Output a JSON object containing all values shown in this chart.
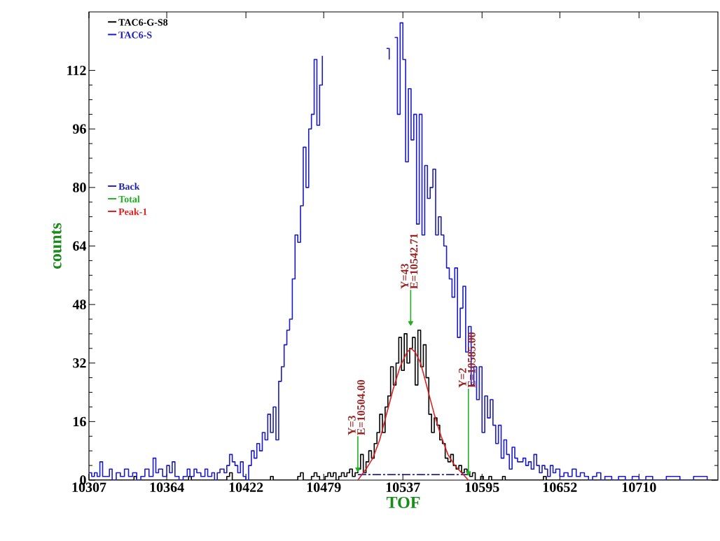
{
  "chart_data": {
    "type": "step",
    "xlabel": "TOF",
    "ylabel": "counts",
    "xlim": [
      10307,
      10767.8
    ],
    "ylim": [
      0,
      128
    ],
    "xticks": [
      10307,
      10364,
      10422,
      10479,
      10537,
      10595,
      10652,
      10710
    ],
    "yticks": [
      0,
      16,
      32,
      48,
      64,
      80,
      96,
      112
    ],
    "legend": "top left",
    "marker": "none",
    "series": [
      {
        "name": "TAC6-G-S8",
        "color": "#000000",
        "x": [
          10307,
          10340,
          10342,
          10380,
          10382,
          10408,
          10410,
          10412,
          10440,
          10442,
          10460,
          10462,
          10464,
          10470,
          10472,
          10474,
          10476,
          10480,
          10482,
          10484,
          10486,
          10488,
          10490,
          10492,
          10494,
          10496,
          10498,
          10500,
          10502,
          10504,
          10506,
          10508,
          10510,
          10512,
          10514,
          10516,
          10518,
          10520,
          10522,
          10524,
          10526,
          10528,
          10530,
          10532,
          10534,
          10536,
          10538,
          10540,
          10542,
          10544,
          10546,
          10548,
          10550,
          10552,
          10554,
          10556,
          10558,
          10560,
          10562,
          10564,
          10566,
          10568,
          10570,
          10572,
          10574,
          10576,
          10578,
          10580,
          10582,
          10584,
          10586,
          10588,
          10590,
          10594,
          10596,
          10600,
          10602,
          10610,
          10612,
          10640,
          10642,
          10767
        ],
        "values": [
          0,
          1,
          0,
          1,
          0,
          1,
          2,
          0,
          1,
          0,
          1,
          2,
          0,
          1,
          2,
          1,
          0,
          1,
          2,
          1,
          2,
          0,
          1,
          2,
          1,
          2,
          3,
          1,
          2,
          3,
          7,
          2,
          5,
          8,
          6,
          10,
          13,
          18,
          13,
          20,
          23,
          31,
          26,
          32,
          39,
          30,
          40,
          32,
          36,
          39,
          26,
          41,
          31,
          37,
          28,
          18,
          13,
          17,
          15,
          11,
          10,
          6,
          5,
          7,
          4,
          3,
          4,
          2,
          3,
          2,
          1,
          2,
          0,
          1,
          0,
          1,
          0,
          1,
          0,
          1,
          0,
          0
        ]
      },
      {
        "name": "TAC6-S",
        "color": "#1a1ac8",
        "x": [
          10307,
          10309,
          10311,
          10313,
          10315,
          10317,
          10320,
          10322,
          10324,
          10327,
          10330,
          10333,
          10336,
          10339,
          10342,
          10345,
          10348,
          10351,
          10354,
          10356,
          10358,
          10361,
          10364,
          10366,
          10368,
          10370,
          10373,
          10376,
          10379,
          10381,
          10384,
          10386,
          10389,
          10392,
          10394,
          10397,
          10399,
          10401,
          10403,
          10406,
          10408,
          10410,
          10412,
          10414,
          10416,
          10418,
          10420,
          10422,
          10424,
          10426,
          10428,
          10430,
          10432,
          10434,
          10436,
          10438,
          10440,
          10442,
          10444,
          10446,
          10448,
          10450,
          10452,
          10454,
          10456,
          10458,
          10460,
          10462,
          10464,
          10466,
          10468,
          10470,
          10472,
          10474,
          10476,
          10478,
          10480,
          10525,
          10527,
          10529,
          10531,
          10533,
          10535,
          10537,
          10539,
          10541,
          10543,
          10545,
          10547,
          10549,
          10551,
          10553,
          10555,
          10557,
          10559,
          10561,
          10563,
          10565,
          10567,
          10569,
          10571,
          10573,
          10575,
          10577,
          10579,
          10581,
          10583,
          10585,
          10587,
          10589,
          10591,
          10593,
          10595,
          10597,
          10599,
          10601,
          10603,
          10605,
          10607,
          10609,
          10611,
          10613,
          10615,
          10617,
          10619,
          10621,
          10623,
          10625,
          10627,
          10629,
          10631,
          10633,
          10635,
          10637,
          10639,
          10641,
          10643,
          10645,
          10647,
          10649,
          10652,
          10655,
          10658,
          10661,
          10664,
          10667,
          10670,
          10673,
          10676,
          10679,
          10682,
          10685,
          10690,
          10695,
          10700,
          10705,
          10710,
          10715,
          10720,
          10730,
          10740,
          10750,
          10760
        ],
        "values": [
          2,
          1,
          2,
          1,
          5,
          1,
          1,
          3,
          0,
          2,
          1,
          3,
          1,
          2,
          0,
          1,
          3,
          1,
          6,
          2,
          3,
          1,
          4,
          2,
          5,
          1,
          0,
          1,
          3,
          1,
          3,
          2,
          1,
          3,
          1,
          2,
          0,
          2,
          3,
          2,
          4,
          7,
          5,
          4,
          2,
          5,
          1,
          0,
          4,
          8,
          6,
          10,
          8,
          13,
          11,
          18,
          13,
          20,
          11,
          27,
          31,
          37,
          41,
          44,
          55,
          67,
          65,
          75,
          91,
          80,
          96,
          100,
          115,
          97,
          108,
          116,
          null,
          118,
          115,
          null,
          121,
          100,
          125,
          115,
          87,
          107,
          93,
          100,
          70,
          100,
          67,
          86,
          77,
          80,
          85,
          67,
          72,
          67,
          64,
          58,
          55,
          50,
          58,
          39,
          47,
          53,
          35,
          42,
          26,
          31,
          22,
          31,
          13,
          23,
          17,
          22,
          15,
          10,
          15,
          6,
          11,
          7,
          3,
          9,
          6,
          5,
          5,
          6,
          4,
          5,
          3,
          7,
          4,
          2,
          4,
          3,
          1,
          4,
          2,
          3,
          1,
          2,
          1,
          3,
          1,
          2,
          1,
          0,
          1,
          2,
          0,
          1,
          0,
          1,
          0,
          1,
          0,
          1,
          0,
          1,
          0,
          1,
          0
        ]
      },
      {
        "name": "Back",
        "type": "line",
        "color": "#2020b0",
        "line_style": "dashed",
        "x": [
          10504,
          10585
        ],
        "values": [
          1.5,
          1.5
        ]
      },
      {
        "name": "Total",
        "type": "scatter",
        "marker": "triangle",
        "color": "#22b022",
        "x": [
          10504,
          10542.71,
          10585
        ],
        "values": [
          3,
          43,
          2
        ],
        "errors": [
          [
            3,
            12
          ],
          [
            43,
            52
          ],
          [
            2,
            25
          ]
        ]
      },
      {
        "name": "Peak-1",
        "type": "line",
        "color": "#e02020",
        "x": [
          10504,
          10510,
          10515,
          10520,
          10525,
          10530,
          10535,
          10540,
          10543,
          10546,
          10550,
          10555,
          10560,
          10565,
          10570,
          10575,
          10580,
          10585
        ],
        "values": [
          0,
          3,
          6,
          11,
          18,
          25,
          31,
          35,
          36,
          35,
          32,
          25,
          18,
          12,
          7,
          4,
          2,
          0
        ]
      }
    ],
    "annotations": [
      {
        "text": "Y=3",
        "x": 10504,
        "y": 12
      },
      {
        "text": "E=10504.00",
        "x": 10504,
        "y": 12
      },
      {
        "text": "Y=43",
        "x": 10542.71,
        "y": 52
      },
      {
        "text": "E=10542.71",
        "x": 10542.71,
        "y": 52
      },
      {
        "text": "Y=2",
        "x": 10585,
        "y": 25
      },
      {
        "text": "E=10585.00",
        "x": 10585,
        "y": 25
      }
    ]
  }
}
